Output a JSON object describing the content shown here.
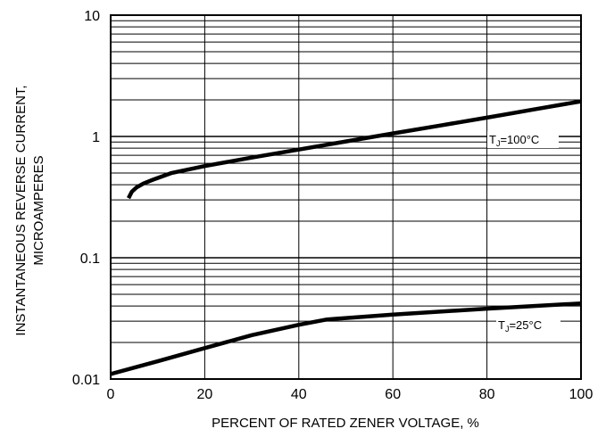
{
  "chart_data": {
    "type": "line",
    "xlabel": "PERCENT OF RATED ZENER VOLTAGE, %",
    "ylabel_line1": "INSTANTANEOUS REVERSE CURRENT,",
    "ylabel_line2": "MICROAMPERES",
    "x_scale": "linear",
    "y_scale": "log",
    "xlim": [
      0,
      100
    ],
    "ylim": [
      0.01,
      10
    ],
    "x_ticks": [
      0,
      20,
      40,
      60,
      80,
      100
    ],
    "x_tick_labels": [
      "0",
      "20",
      "40",
      "60",
      "80",
      "100"
    ],
    "y_ticks": [
      0.01,
      0.1,
      1,
      10
    ],
    "y_tick_labels": [
      "0.01",
      "0.1",
      "1",
      "10"
    ],
    "grid": true,
    "series": [
      {
        "name": "T_J=100°C",
        "label_main": "T",
        "label_sub": "J",
        "label_rest": "=100°C",
        "x": [
          3.8,
          4.5,
          5.5,
          7,
          9,
          13,
          20,
          30,
          40,
          50,
          60,
          70,
          80,
          90,
          100
        ],
        "y": [
          0.31,
          0.35,
          0.38,
          0.41,
          0.44,
          0.5,
          0.57,
          0.67,
          0.78,
          0.91,
          1.06,
          1.23,
          1.43,
          1.67,
          1.95
        ]
      },
      {
        "name": "T_J=25°C",
        "label_main": "T",
        "label_sub": "J",
        "label_rest": "=25°C",
        "x": [
          0,
          10,
          20,
          30,
          40,
          46,
          60,
          80,
          100
        ],
        "y": [
          0.011,
          0.014,
          0.018,
          0.023,
          0.028,
          0.031,
          0.034,
          0.038,
          0.042
        ]
      }
    ]
  }
}
